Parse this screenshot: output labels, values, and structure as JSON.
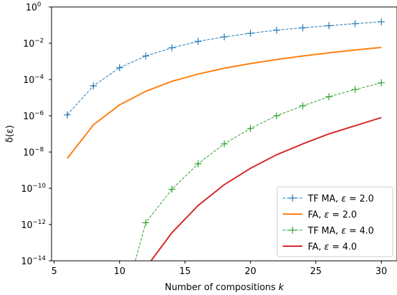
{
  "chart_data": {
    "type": "line",
    "title": "",
    "xlabel": "Number of compositions k",
    "ylabel": "δ(ε)",
    "xlim": [
      4.8,
      31.2
    ],
    "ylim_log10": [
      -14,
      0
    ],
    "yscale": "log",
    "grid": false,
    "legend_position": "lower-right",
    "x_ticks": [
      5,
      10,
      15,
      20,
      25,
      30
    ],
    "y_ticks_log10": [
      0,
      -2,
      -4,
      -6,
      -8,
      -10,
      -12,
      -14
    ],
    "series": [
      {
        "name": "TF MA, ε = 2.0",
        "legend_prefix": "TF MA, ",
        "legend_math": "ε = 2.0",
        "color": "#1f77b4",
        "style": "dashed",
        "marker": "plus",
        "x": [
          6,
          8,
          10,
          12,
          14,
          16,
          18,
          20,
          22,
          24,
          26,
          28,
          30
        ],
        "log10_y": [
          -5.95,
          -4.35,
          -3.35,
          -2.7,
          -2.25,
          -1.9,
          -1.65,
          -1.45,
          -1.28,
          -1.15,
          -1.03,
          -0.92,
          -0.82
        ]
      },
      {
        "name": "FA, ε = 2.0",
        "legend_prefix": "FA, ",
        "legend_math": "ε = 2.0",
        "color": "#ff7f0e",
        "style": "solid",
        "marker": "none",
        "x": [
          6,
          8,
          10,
          12,
          14,
          16,
          18,
          20,
          22,
          24,
          26,
          28,
          30
        ],
        "log10_y": [
          -8.35,
          -6.5,
          -5.4,
          -4.65,
          -4.1,
          -3.7,
          -3.38,
          -3.12,
          -2.9,
          -2.7,
          -2.53,
          -2.37,
          -2.23
        ]
      },
      {
        "name": "TF MA, ε = 4.0",
        "legend_prefix": "TF MA, ",
        "legend_math": "ε = 4.0",
        "color": "#2ca02c",
        "style": "dashed",
        "marker": "plus",
        "x": [
          11.2,
          12,
          14,
          16,
          18,
          20,
          22,
          24,
          26,
          28,
          30
        ],
        "log10_y": [
          -14,
          -11.9,
          -10.05,
          -8.65,
          -7.55,
          -6.7,
          -6.0,
          -5.45,
          -4.95,
          -4.55,
          -4.18
        ]
      },
      {
        "name": "FA, ε = 4.0",
        "legend_prefix": "FA, ",
        "legend_math": "ε = 4.0",
        "color": "#d62728",
        "style": "solid",
        "marker": "none",
        "x": [
          12.4,
          14,
          16,
          18,
          20,
          22,
          24,
          26,
          28,
          30
        ],
        "log10_y": [
          -14,
          -12.45,
          -10.95,
          -9.8,
          -8.9,
          -8.15,
          -7.55,
          -7.0,
          -6.55,
          -6.1
        ]
      }
    ]
  }
}
